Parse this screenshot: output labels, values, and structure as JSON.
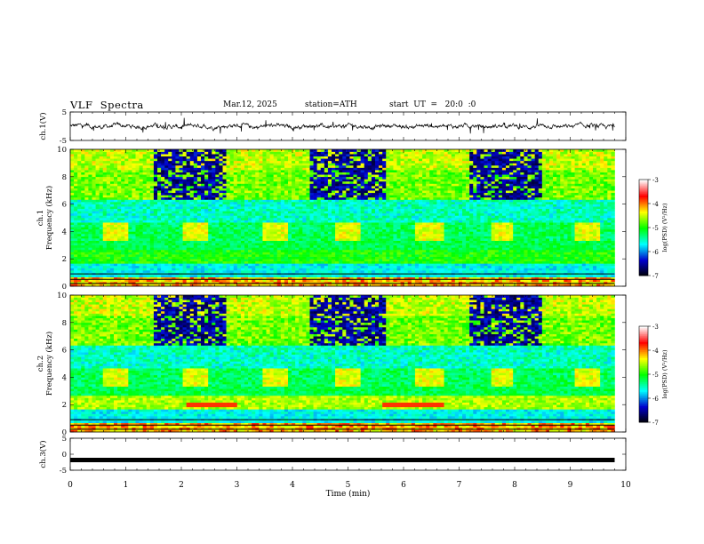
{
  "header": {
    "title": "VLF  Spectra",
    "date": "Mar.12, 2025",
    "station": "station=ATH",
    "start_ut": "start  UT  =   20:0  :0"
  },
  "colorbar": {
    "label": "log(PSD) (V²/Hz)",
    "ticks": [
      "-3",
      "-4",
      "-5",
      "-6",
      "-7"
    ],
    "colors": [
      "#000000",
      "#0000cd",
      "#00ffff",
      "#00ff00",
      "#ffff00",
      "#ff0000",
      "#ffffff"
    ]
  },
  "chart_data": [
    {
      "type": "line",
      "panel": "ch1-waveform",
      "ylabel": "ch.1(V)",
      "ylim": [
        -5,
        5
      ],
      "y_ticks": [
        "5",
        "-5"
      ],
      "xlim": [
        0,
        10
      ],
      "series": [
        {
          "values_description_mean": 0,
          "x": [
            0,
            9.8
          ],
          "y": [
            0,
            0
          ]
        }
      ]
    },
    {
      "type": "heatmap",
      "panel": "ch1-spectrogram",
      "ylabel": "ch.1\nFrequency  (kHz)",
      "ylim": [
        0,
        10
      ],
      "y_ticks": [
        "10",
        "8",
        "6",
        "4",
        "2",
        "0"
      ],
      "xlim": [
        0,
        10
      ],
      "data_end_min": 9.8
    },
    {
      "type": "heatmap",
      "panel": "ch2-spectrogram",
      "ylabel": "ch.2\nFrequency  (kHz)",
      "ylim": [
        0,
        10
      ],
      "y_ticks": [
        "10",
        "8",
        "6",
        "4",
        "2",
        "0"
      ],
      "xlim": [
        0,
        10
      ],
      "data_end_min": 9.8
    },
    {
      "type": "line",
      "panel": "ch3-waveform",
      "ylabel": "ch.3(V)",
      "ylim": [
        -5,
        5
      ],
      "y_ticks": [
        "5",
        "0",
        "-5"
      ],
      "xlim": [
        0,
        10
      ],
      "series": [
        {
          "x": [
            0,
            9.8
          ],
          "y": [
            -1.8,
            -1.8
          ]
        }
      ]
    }
  ],
  "xaxis": {
    "label": "Time  (min)",
    "ticks": [
      "0",
      "1",
      "2",
      "3",
      "4",
      "5",
      "6",
      "7",
      "8",
      "9",
      "10"
    ]
  }
}
